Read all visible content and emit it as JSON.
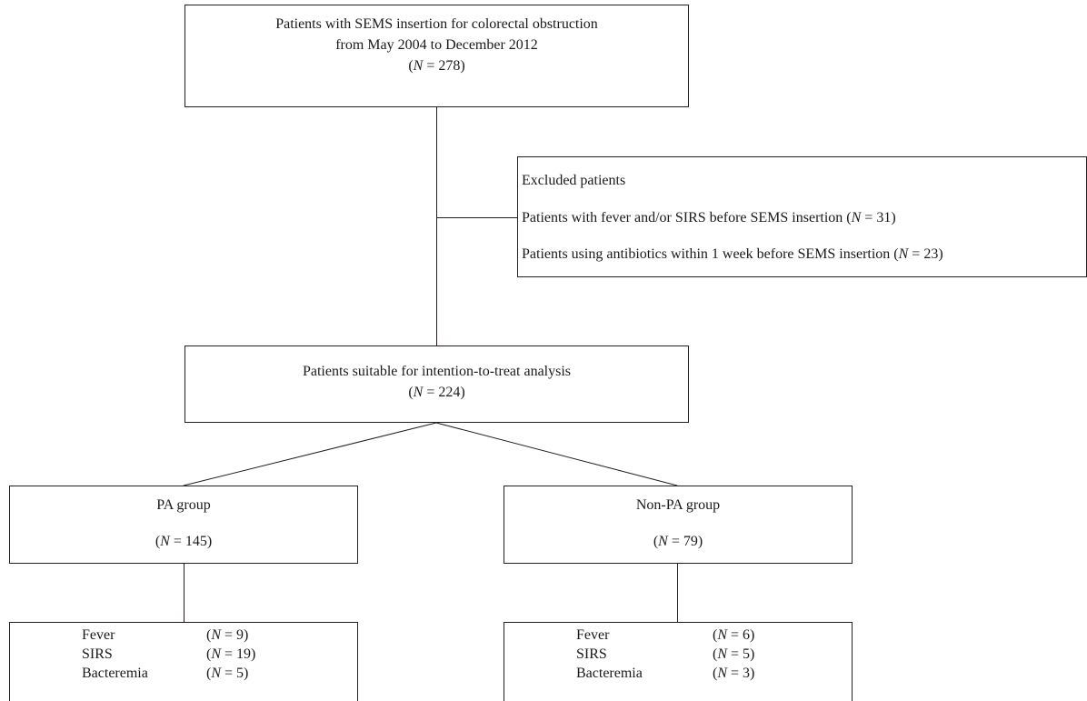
{
  "top_box": {
    "line1": "Patients with SEMS insertion for colorectal obstruction",
    "line2": "from May 2004 to December 2012",
    "n_prefix": "(",
    "n_label": "N",
    "n_value": " = 278)"
  },
  "excluded_box": {
    "title": "Excluded patients",
    "item1_text": "Patients with fever and/or SIRS before SEMS insertion (",
    "item1_n": "N",
    "item1_value": " = 31)",
    "item2_text": "Patients using antibiotics within 1 week before SEMS insertion (",
    "item2_n": "N",
    "item2_value": " = 23)"
  },
  "itt_box": {
    "line1": "Patients suitable for intention-to-treat analysis",
    "n_prefix": "(",
    "n_label": "N",
    "n_value": " = 224)"
  },
  "pa_box": {
    "title": "PA group",
    "n_prefix": "(",
    "n_label": "N",
    "n_value": " = 145)"
  },
  "nonpa_box": {
    "title": "Non-PA group",
    "n_prefix": "(",
    "n_label": "N",
    "n_value": " = 79)"
  },
  "pa_outcomes": [
    {
      "label": "Fever",
      "n_label": "N",
      "n_value": " = 9)"
    },
    {
      "label": "SIRS",
      "n_label": "N",
      "n_value": " = 19)"
    },
    {
      "label": "Bacteremia",
      "n_label": "N",
      "n_value": " = 5)"
    }
  ],
  "nonpa_outcomes": [
    {
      "label": "Fever",
      "n_label": "N",
      "n_value": " = 6)"
    },
    {
      "label": "SIRS",
      "n_label": "N",
      "n_value": " = 5)"
    },
    {
      "label": "Bacteremia",
      "n_label": "N",
      "n_value": " = 3)"
    }
  ],
  "open_paren": "("
}
